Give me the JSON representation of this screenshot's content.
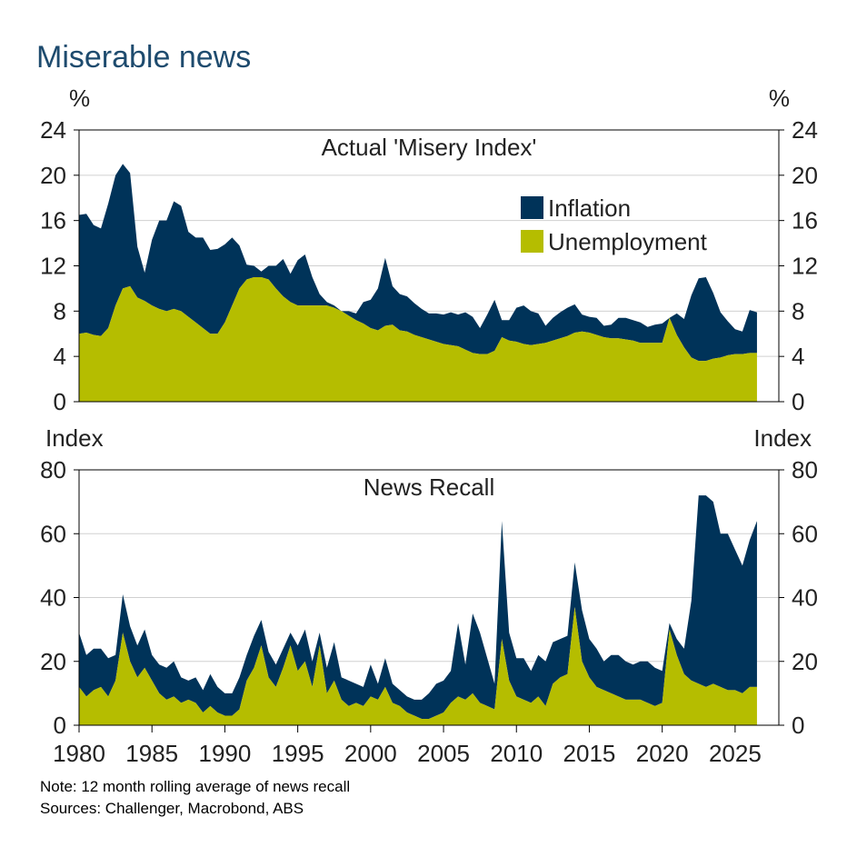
{
  "title": "Miserable news",
  "note": "Note: 12 month rolling average of news recall",
  "sources": "Sources: Challenger, Macrobond, ABS",
  "colors": {
    "inflation": "#003359",
    "unemployment": "#b5bd00",
    "title": "#1e4b6e",
    "grid": "#d0d0d0",
    "axis": "#000000"
  },
  "chart_data": [
    {
      "type": "area",
      "stacked": true,
      "panel_title": "Actual 'Misery Index'",
      "ylabel_left": "%",
      "ylabel_right": "%",
      "ylim": [
        0,
        24
      ],
      "yticks": [
        0,
        4,
        8,
        12,
        16,
        20,
        24
      ],
      "grid": true,
      "legend_placement": "top-right",
      "legend": [
        "Inflation",
        "Unemployment"
      ],
      "x": [
        1980.0,
        1980.5,
        1981.0,
        1981.5,
        1982.0,
        1982.5,
        1983.0,
        1983.5,
        1984.0,
        1984.5,
        1985.0,
        1985.5,
        1986.0,
        1986.5,
        1987.0,
        1987.5,
        1988.0,
        1988.5,
        1989.0,
        1989.5,
        1990.0,
        1990.5,
        1991.0,
        1991.5,
        1992.0,
        1992.5,
        1993.0,
        1993.5,
        1994.0,
        1994.5,
        1995.0,
        1995.5,
        1996.0,
        1996.5,
        1997.0,
        1997.5,
        1998.0,
        1998.5,
        1999.0,
        1999.5,
        2000.0,
        2000.5,
        2001.0,
        2001.5,
        2002.0,
        2002.5,
        2003.0,
        2003.5,
        2004.0,
        2004.5,
        2005.0,
        2005.5,
        2006.0,
        2006.5,
        2007.0,
        2007.5,
        2008.0,
        2008.5,
        2009.0,
        2009.5,
        2010.0,
        2010.5,
        2011.0,
        2011.5,
        2012.0,
        2012.5,
        2013.0,
        2013.5,
        2014.0,
        2014.5,
        2015.0,
        2015.5,
        2016.0,
        2016.5,
        2017.0,
        2017.5,
        2018.0,
        2018.5,
        2019.0,
        2019.5,
        2020.0,
        2020.5,
        2021.0,
        2021.5,
        2022.0,
        2022.5,
        2023.0,
        2023.5,
        2024.0,
        2024.5,
        2025.0,
        2025.5,
        2026.0,
        2026.5
      ],
      "series": [
        {
          "name": "Unemployment",
          "values": [
            6.0,
            6.1,
            5.9,
            5.8,
            6.5,
            8.5,
            10.0,
            10.2,
            9.2,
            8.9,
            8.5,
            8.2,
            8.0,
            8.2,
            8.0,
            7.5,
            7.0,
            6.5,
            6.0,
            6.0,
            7.0,
            8.5,
            10.0,
            10.8,
            11.0,
            11.0,
            10.8,
            10.0,
            9.3,
            8.8,
            8.5,
            8.5,
            8.5,
            8.5,
            8.5,
            8.3,
            8.0,
            7.6,
            7.2,
            6.9,
            6.5,
            6.3,
            6.7,
            6.8,
            6.3,
            6.2,
            5.9,
            5.7,
            5.5,
            5.3,
            5.1,
            5.0,
            4.9,
            4.6,
            4.3,
            4.2,
            4.2,
            4.5,
            5.7,
            5.4,
            5.3,
            5.1,
            5.0,
            5.1,
            5.2,
            5.4,
            5.6,
            5.8,
            6.1,
            6.2,
            6.1,
            5.9,
            5.7,
            5.6,
            5.6,
            5.5,
            5.4,
            5.2,
            5.2,
            5.2,
            5.2,
            7.4,
            5.9,
            4.8,
            3.9,
            3.6,
            3.6,
            3.8,
            3.9,
            4.1,
            4.2,
            4.2,
            4.3,
            4.3
          ]
        },
        {
          "name": "Inflation",
          "values": [
            10.5,
            10.5,
            9.7,
            9.5,
            11.0,
            11.5,
            11.0,
            10.0,
            4.5,
            2.5,
            5.8,
            7.8,
            8.0,
            9.5,
            9.3,
            7.5,
            7.5,
            8.0,
            7.4,
            7.5,
            6.9,
            6.0,
            3.8,
            1.3,
            1.0,
            0.5,
            1.2,
            2.0,
            3.3,
            2.5,
            4.0,
            4.5,
            2.5,
            1.0,
            0.3,
            0.2,
            0.0,
            0.4,
            0.6,
            1.9,
            2.5,
            3.7,
            6.0,
            3.4,
            3.2,
            3.1,
            2.8,
            2.5,
            2.3,
            2.5,
            2.6,
            2.9,
            2.8,
            3.3,
            3.2,
            2.3,
            3.5,
            4.5,
            1.5,
            1.8,
            3.0,
            3.4,
            3.0,
            2.7,
            1.5,
            2.0,
            2.3,
            2.5,
            2.5,
            1.5,
            1.4,
            1.5,
            1.0,
            1.2,
            1.8,
            1.9,
            1.8,
            1.8,
            1.4,
            1.6,
            1.7,
            -0.1,
            1.9,
            2.5,
            5.5,
            7.3,
            7.4,
            5.8,
            4.0,
            3.0,
            2.2,
            2.0,
            3.8,
            3.6
          ]
        }
      ]
    },
    {
      "type": "area",
      "stacked": true,
      "panel_title": "News Recall",
      "ylabel_left": "Index",
      "ylabel_right": "Index",
      "ylim": [
        0,
        80
      ],
      "yticks": [
        0,
        20,
        40,
        60,
        80
      ],
      "grid": true,
      "x_axis": {
        "ticks": [
          1980,
          1985,
          1990,
          1995,
          2000,
          2005,
          2010,
          2015,
          2020,
          2025
        ],
        "range": [
          1980,
          2028
        ]
      },
      "x": [
        1980.0,
        1980.5,
        1981.0,
        1981.5,
        1982.0,
        1982.5,
        1983.0,
        1983.5,
        1984.0,
        1984.5,
        1985.0,
        1985.5,
        1986.0,
        1986.5,
        1987.0,
        1987.5,
        1988.0,
        1988.5,
        1989.0,
        1989.5,
        1990.0,
        1990.5,
        1991.0,
        1991.5,
        1992.0,
        1992.5,
        1993.0,
        1993.5,
        1994.0,
        1994.5,
        1995.0,
        1995.5,
        1996.0,
        1996.5,
        1997.0,
        1997.5,
        1998.0,
        1998.5,
        1999.0,
        1999.5,
        2000.0,
        2000.5,
        2001.0,
        2001.5,
        2002.0,
        2002.5,
        2003.0,
        2003.5,
        2004.0,
        2004.5,
        2005.0,
        2005.5,
        2006.0,
        2006.5,
        2007.0,
        2007.5,
        2008.0,
        2008.5,
        2009.0,
        2009.5,
        2010.0,
        2010.5,
        2011.0,
        2011.5,
        2012.0,
        2012.5,
        2013.0,
        2013.5,
        2014.0,
        2014.5,
        2015.0,
        2015.5,
        2016.0,
        2016.5,
        2017.0,
        2017.5,
        2018.0,
        2018.5,
        2019.0,
        2019.5,
        2020.0,
        2020.5,
        2021.0,
        2021.5,
        2022.0,
        2022.5,
        2023.0,
        2023.5,
        2024.0,
        2024.5,
        2025.0,
        2025.5,
        2026.0,
        2026.5
      ],
      "series": [
        {
          "name": "Unemployment",
          "values": [
            12,
            9,
            11,
            12,
            9,
            14,
            29,
            20,
            15,
            18,
            14,
            10,
            8,
            9,
            7,
            8,
            7,
            4,
            6,
            4,
            3,
            3,
            5,
            14,
            18,
            25,
            15,
            12,
            18,
            25,
            17,
            20,
            12,
            25,
            10,
            14,
            8,
            6,
            7,
            6,
            9,
            8,
            12,
            7,
            6,
            4,
            3,
            2,
            2,
            3,
            4,
            7,
            9,
            8,
            10,
            7,
            6,
            5,
            27,
            14,
            9,
            8,
            7,
            9,
            6,
            13,
            15,
            16,
            37,
            20,
            15,
            12,
            11,
            10,
            9,
            8,
            8,
            8,
            7,
            6,
            7,
            30,
            22,
            16,
            14,
            13,
            12,
            13,
            12,
            11,
            11,
            10,
            12,
            12
          ]
        },
        {
          "name": "Inflation",
          "values": [
            17,
            13,
            13,
            12,
            12,
            8,
            12,
            11,
            10,
            12,
            8,
            9,
            10,
            11,
            8,
            6,
            8,
            7,
            10,
            8,
            7,
            7,
            10,
            8,
            10,
            8,
            8,
            7,
            6,
            4,
            8,
            10,
            8,
            4,
            8,
            12,
            7,
            8,
            6,
            6,
            10,
            5,
            9,
            6,
            5,
            5,
            5,
            6,
            8,
            10,
            10,
            10,
            23,
            11,
            25,
            22,
            15,
            8,
            37,
            15,
            12,
            13,
            10,
            13,
            14,
            13,
            12,
            12,
            14,
            16,
            12,
            12,
            9,
            12,
            13,
            12,
            11,
            12,
            13,
            12,
            10,
            2,
            5,
            8,
            25,
            59,
            60,
            57,
            48,
            49,
            44,
            40,
            46,
            52
          ]
        }
      ]
    }
  ]
}
